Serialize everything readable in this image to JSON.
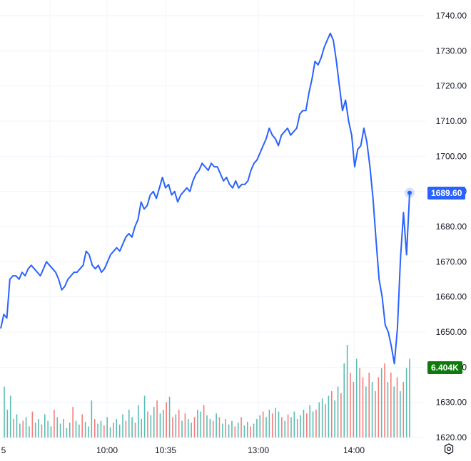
{
  "chart_data": {
    "type": "line",
    "x_axis_ticks": [
      "5",
      "10:00",
      "10:35",
      "13:00",
      "14:00"
    ],
    "price_axis_ticks": [
      "1740.00",
      "1730.00",
      "1720.00",
      "1710.00",
      "1700.00",
      "1690.00",
      "1680.00",
      "1670.00",
      "1660.00",
      "1650.00",
      "1640.00",
      "1630.00",
      "1620.00"
    ],
    "ylim": [
      1619,
      1743
    ],
    "last_price": "1689.60",
    "last_volume": "6.404K",
    "grid": true,
    "colors": {
      "line": "#2962ff",
      "price_tag": "#2962ff",
      "volume_tag": "#0e7a0d",
      "volume_up": "#26a69a",
      "volume_down": "#ef5350",
      "grid": "#f0f3fa",
      "axis_text": "#131722"
    },
    "series": [
      {
        "values": [
          1651,
          1655,
          1654,
          1665,
          1666,
          1666,
          1665,
          1667,
          1666,
          1668,
          1669,
          1668,
          1667,
          1666,
          1668,
          1670,
          1669,
          1668,
          1667,
          1665,
          1662,
          1663,
          1665,
          1666,
          1667,
          1667,
          1668,
          1669,
          1673,
          1672,
          1669,
          1668,
          1669,
          1667,
          1668,
          1670,
          1672,
          1673,
          1674,
          1673,
          1675,
          1677,
          1678,
          1677,
          1680,
          1682,
          1687,
          1685,
          1686,
          1689,
          1690,
          1688,
          1691,
          1694,
          1691,
          1692,
          1689,
          1690,
          1687,
          1689,
          1690,
          1691,
          1690,
          1693,
          1695,
          1696,
          1698,
          1697,
          1696,
          1698,
          1697,
          1697,
          1695,
          1693,
          1694,
          1692,
          1691,
          1693,
          1691,
          1692,
          1692,
          1693,
          1696,
          1698,
          1699,
          1701,
          1703,
          1705,
          1708,
          1706,
          1705,
          1703,
          1706,
          1707,
          1708,
          1706,
          1707,
          1708,
          1712,
          1713,
          1713,
          1718,
          1722,
          1727,
          1726,
          1728,
          1731,
          1733,
          1735,
          1733,
          1727,
          1720,
          1713,
          1716,
          1710,
          1706,
          1697,
          1702,
          1703,
          1708,
          1704,
          1697,
          1688,
          1676,
          1665,
          1660,
          1652,
          1650,
          1646,
          1641,
          1651,
          1671,
          1684,
          1672,
          1689.6
        ]
      }
    ],
    "volume": [
      {
        "v": 0.55,
        "up": true
      },
      {
        "v": 0.3,
        "up": true
      },
      {
        "v": 0.45,
        "up": true
      },
      {
        "v": 0.2,
        "up": false
      },
      {
        "v": 0.25,
        "up": true
      },
      {
        "v": 0.15,
        "up": true
      },
      {
        "v": 0.18,
        "up": false
      },
      {
        "v": 0.22,
        "up": true
      },
      {
        "v": 0.12,
        "up": true
      },
      {
        "v": 0.28,
        "up": false
      },
      {
        "v": 0.16,
        "up": true
      },
      {
        "v": 0.2,
        "up": true
      },
      {
        "v": 0.14,
        "up": false
      },
      {
        "v": 0.25,
        "up": true
      },
      {
        "v": 0.18,
        "up": true
      },
      {
        "v": 0.12,
        "up": true
      },
      {
        "v": 0.3,
        "up": false
      },
      {
        "v": 0.22,
        "up": true
      },
      {
        "v": 0.15,
        "up": true
      },
      {
        "v": 0.2,
        "up": false
      },
      {
        "v": 0.1,
        "up": true
      },
      {
        "v": 0.16,
        "up": true
      },
      {
        "v": 0.33,
        "up": false
      },
      {
        "v": 0.18,
        "up": true
      },
      {
        "v": 0.14,
        "up": true
      },
      {
        "v": 0.25,
        "up": false
      },
      {
        "v": 0.17,
        "up": true
      },
      {
        "v": 0.12,
        "up": true
      },
      {
        "v": 0.4,
        "up": true
      },
      {
        "v": 0.2,
        "up": false
      },
      {
        "v": 0.15,
        "up": true
      },
      {
        "v": 0.18,
        "up": true
      },
      {
        "v": 0.13,
        "up": false
      },
      {
        "v": 0.22,
        "up": true
      },
      {
        "v": 0.11,
        "up": true
      },
      {
        "v": 0.16,
        "up": false
      },
      {
        "v": 0.2,
        "up": true
      },
      {
        "v": 0.14,
        "up": true
      },
      {
        "v": 0.25,
        "up": true
      },
      {
        "v": 0.18,
        "up": false
      },
      {
        "v": 0.3,
        "up": true
      },
      {
        "v": 0.22,
        "up": true
      },
      {
        "v": 0.16,
        "up": false
      },
      {
        "v": 0.35,
        "up": true
      },
      {
        "v": 0.2,
        "up": true
      },
      {
        "v": 0.45,
        "up": true
      },
      {
        "v": 0.28,
        "up": false
      },
      {
        "v": 0.24,
        "up": true
      },
      {
        "v": 0.33,
        "up": true
      },
      {
        "v": 0.4,
        "up": false
      },
      {
        "v": 0.26,
        "up": true
      },
      {
        "v": 0.3,
        "up": true
      },
      {
        "v": 0.38,
        "up": false
      },
      {
        "v": 0.44,
        "up": true
      },
      {
        "v": 0.22,
        "up": false
      },
      {
        "v": 0.25,
        "up": true
      },
      {
        "v": 0.3,
        "up": false
      },
      {
        "v": 0.18,
        "up": true
      },
      {
        "v": 0.26,
        "up": false
      },
      {
        "v": 0.2,
        "up": true
      },
      {
        "v": 0.16,
        "up": true
      },
      {
        "v": 0.22,
        "up": false
      },
      {
        "v": 0.3,
        "up": true
      },
      {
        "v": 0.28,
        "up": true
      },
      {
        "v": 0.35,
        "up": false
      },
      {
        "v": 0.24,
        "up": true
      },
      {
        "v": 0.2,
        "up": true
      },
      {
        "v": 0.18,
        "up": false
      },
      {
        "v": 0.26,
        "up": true
      },
      {
        "v": 0.22,
        "up": false
      },
      {
        "v": 0.15,
        "up": true
      },
      {
        "v": 0.2,
        "up": false
      },
      {
        "v": 0.14,
        "up": true
      },
      {
        "v": 0.18,
        "up": true
      },
      {
        "v": 0.12,
        "up": false
      },
      {
        "v": 0.16,
        "up": true
      },
      {
        "v": 0.22,
        "up": false
      },
      {
        "v": 0.13,
        "up": true
      },
      {
        "v": 0.17,
        "up": true
      },
      {
        "v": 0.12,
        "up": false
      },
      {
        "v": 0.15,
        "up": true
      },
      {
        "v": 0.2,
        "up": true
      },
      {
        "v": 0.24,
        "up": true
      },
      {
        "v": 0.28,
        "up": false
      },
      {
        "v": 0.22,
        "up": true
      },
      {
        "v": 0.3,
        "up": true
      },
      {
        "v": 0.26,
        "up": false
      },
      {
        "v": 0.32,
        "up": true
      },
      {
        "v": 0.28,
        "up": true
      },
      {
        "v": 0.22,
        "up": false
      },
      {
        "v": 0.18,
        "up": true
      },
      {
        "v": 0.25,
        "up": false
      },
      {
        "v": 0.22,
        "up": true
      },
      {
        "v": 0.28,
        "up": true
      },
      {
        "v": 0.2,
        "up": false
      },
      {
        "v": 0.24,
        "up": true
      },
      {
        "v": 0.3,
        "up": true
      },
      {
        "v": 0.26,
        "up": false
      },
      {
        "v": 0.35,
        "up": true
      },
      {
        "v": 0.28,
        "up": true
      },
      {
        "v": 0.3,
        "up": false
      },
      {
        "v": 0.38,
        "up": true
      },
      {
        "v": 0.42,
        "up": true
      },
      {
        "v": 0.36,
        "up": false
      },
      {
        "v": 0.45,
        "up": true
      },
      {
        "v": 0.5,
        "up": false
      },
      {
        "v": 0.4,
        "up": true
      },
      {
        "v": 0.55,
        "up": true
      },
      {
        "v": 0.48,
        "up": false
      },
      {
        "v": 0.8,
        "up": true
      },
      {
        "v": 1.0,
        "up": true
      },
      {
        "v": 0.7,
        "up": false
      },
      {
        "v": 0.6,
        "up": false
      },
      {
        "v": 0.85,
        "up": true
      },
      {
        "v": 0.75,
        "up": false
      },
      {
        "v": 0.65,
        "up": false
      },
      {
        "v": 0.55,
        "up": true
      },
      {
        "v": 0.7,
        "up": false
      },
      {
        "v": 0.6,
        "up": true
      },
      {
        "v": 0.5,
        "up": false
      },
      {
        "v": 0.65,
        "up": false
      },
      {
        "v": 0.75,
        "up": true
      },
      {
        "v": 0.8,
        "up": false
      },
      {
        "v": 0.6,
        "up": true
      },
      {
        "v": 0.7,
        "up": false
      },
      {
        "v": 0.55,
        "up": true
      },
      {
        "v": 0.65,
        "up": false
      },
      {
        "v": 0.5,
        "up": true
      },
      {
        "v": 0.6,
        "up": false
      },
      {
        "v": 0.75,
        "up": true
      },
      {
        "v": 0.85,
        "up": true
      }
    ]
  }
}
